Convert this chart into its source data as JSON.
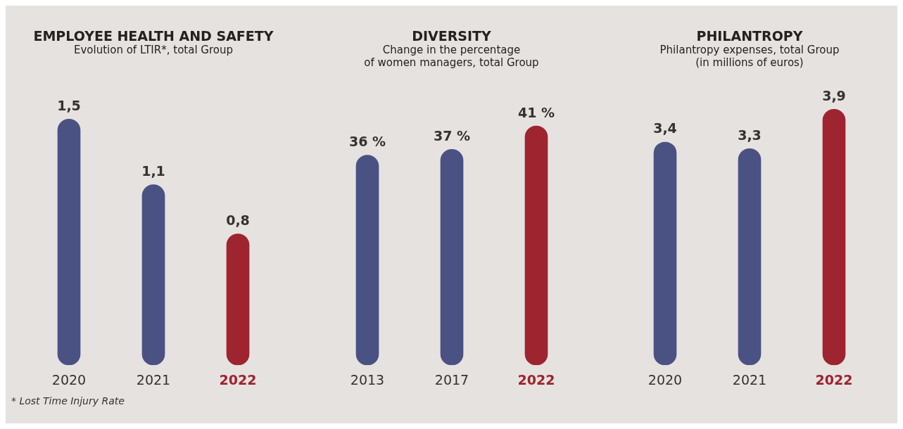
{
  "chart_data": [
    {
      "type": "bar",
      "title": "EMPLOYEE HEALTH AND SAFETY",
      "subtitle": "Evolution of LTIR*, total Group",
      "categories": [
        "2020",
        "2021",
        "2022"
      ],
      "values": [
        1.5,
        1.1,
        0.8
      ],
      "colors": [
        "#4a5283",
        "#4a5283",
        "#9e2430"
      ],
      "value_labels": [
        "1,5",
        "1,1",
        "0,8"
      ],
      "annotations": [
        "* Lost Time Injury Rate"
      ]
    },
    {
      "type": "bar",
      "title": "DIVERSITY",
      "subtitle": "Change in the percentage\nof women managers, total Group",
      "categories": [
        "2013",
        "2017",
        "2022"
      ],
      "values": [
        36,
        37,
        41
      ],
      "colors": [
        "#4a5283",
        "#4a5283",
        "#9e2430"
      ],
      "value_labels": [
        "36 %",
        "37 %",
        "41 %"
      ]
    },
    {
      "type": "bar",
      "title": "PHILANTROPY",
      "subtitle": "Philantropy expenses, total Group\n(in millions of euros)",
      "categories": [
        "2020",
        "2021",
        "2022"
      ],
      "values": [
        3.4,
        3.3,
        3.9
      ],
      "colors": [
        "#4a5283",
        "#4a5283",
        "#9e2430"
      ],
      "value_labels": [
        "3,4",
        "3,3",
        "3,9"
      ]
    }
  ]
}
